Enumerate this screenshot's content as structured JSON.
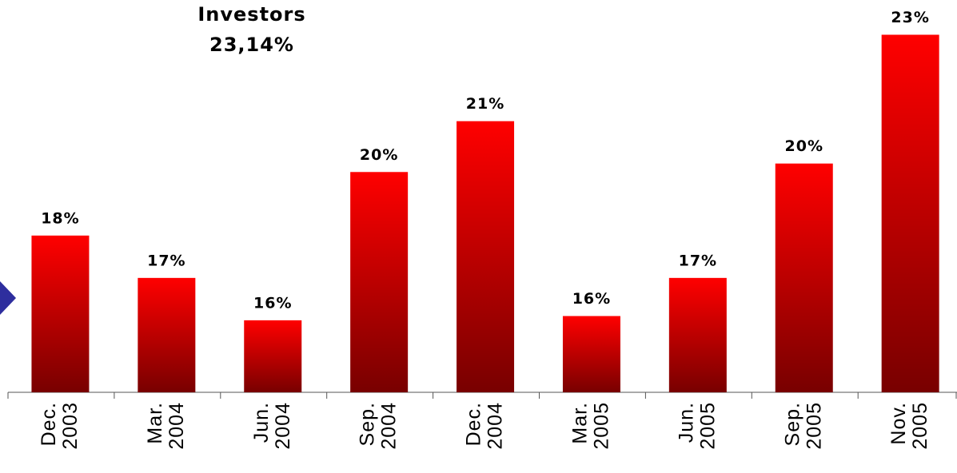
{
  "chart_data": {
    "type": "bar",
    "title": "Investors",
    "subtitle": "23,14%",
    "categories": [
      "Dec. 2003",
      "Mar. 2004",
      "Jun. 2004",
      "Sep. 2004",
      "Dec. 2004",
      "Mar. 2005",
      "Jun. 2005",
      "Sep. 2005",
      "Nov. 2005"
    ],
    "values": [
      18.4,
      17.4,
      16.4,
      19.9,
      21.1,
      16.5,
      17.4,
      20.1,
      23.14
    ],
    "value_labels": [
      "18%",
      "17%",
      "16%",
      "20%",
      "21%",
      "16%",
      "17%",
      "20%",
      "23%"
    ],
    "color": [
      "#ff0000",
      "#780000"
    ],
    "ylim": [
      14.7,
      23.3
    ]
  }
}
